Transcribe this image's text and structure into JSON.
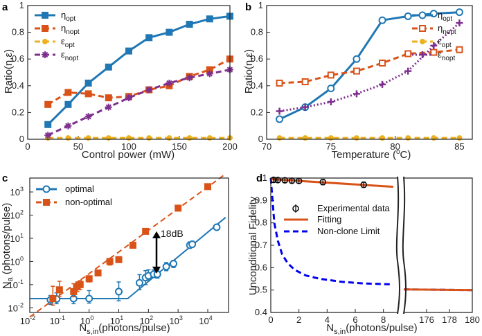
{
  "colors": {
    "blue": "#1f77b4",
    "orange": "#d95319",
    "yellow": "#edb120",
    "purple": "#7e2f8e",
    "darkblue": "#0000ee",
    "black": "#000000"
  },
  "chart_data": [
    {
      "panel": "a",
      "type": "line",
      "xlabel": "Control power (mW)",
      "ylabel": "Ratio(η,ε)",
      "xlim": [
        0,
        200
      ],
      "ylim": [
        0,
        1
      ],
      "xticks": [
        0,
        50,
        100,
        150,
        200
      ],
      "yticks": [
        0,
        0.2,
        0.4,
        0.6,
        0.8,
        1
      ],
      "yticklabels": [
        "0",
        "0.2",
        "0.4",
        "0.6",
        "0.8",
        "1"
      ],
      "legend_position": "top-left",
      "series": [
        {
          "name": "η",
          "sub": "opt",
          "color": "#1f77b4",
          "marker": "square",
          "style": "solid",
          "x": [
            20,
            40,
            60,
            80,
            100,
            120,
            140,
            160,
            180,
            200
          ],
          "y": [
            0.11,
            0.26,
            0.42,
            0.54,
            0.66,
            0.76,
            0.8,
            0.86,
            0.9,
            0.92
          ]
        },
        {
          "name": "η",
          "sub": "nopt",
          "color": "#d95319",
          "marker": "square",
          "style": "dashed",
          "x": [
            20,
            40,
            60,
            80,
            100,
            120,
            140,
            160,
            180,
            200
          ],
          "y": [
            0.26,
            0.35,
            0.34,
            0.31,
            0.32,
            0.37,
            0.4,
            0.47,
            0.52,
            0.6
          ]
        },
        {
          "name": "ε",
          "sub": "opt",
          "color": "#edb120",
          "marker": "circle",
          "style": "dashed",
          "x": [
            20,
            40,
            60,
            80,
            100,
            120,
            140,
            160,
            180,
            200
          ],
          "y": [
            0.01,
            0.01,
            0.01,
            0.01,
            0.01,
            0.01,
            0.01,
            0.01,
            0.01,
            0.01
          ]
        },
        {
          "name": "ε",
          "sub": "nopt",
          "color": "#7e2f8e",
          "marker": "star",
          "style": "dashed",
          "x": [
            20,
            40,
            60,
            80,
            100,
            120,
            140,
            160,
            180,
            200
          ],
          "y": [
            0.03,
            0.1,
            0.17,
            0.24,
            0.31,
            0.37,
            0.42,
            0.46,
            0.49,
            0.52
          ]
        }
      ]
    },
    {
      "panel": "b",
      "type": "line",
      "xlabel": "Temperature (",
      "xlabel_unit": "C)",
      "degree": "o",
      "ylabel": "Ratio(η,ε)",
      "xlim": [
        70,
        86
      ],
      "ylim": [
        0,
        1
      ],
      "xticks": [
        70,
        75,
        80,
        85
      ],
      "yticks": [
        0,
        0.2,
        0.4,
        0.6,
        0.8,
        1
      ],
      "yticklabels": [
        "0",
        "0.2",
        "0.4",
        "0.6",
        "0.8",
        "1"
      ],
      "legend_position": "top-right",
      "series": [
        {
          "name": "η",
          "sub": "opt",
          "color": "#1f77b4",
          "marker": "circle-open",
          "style": "solid",
          "x": [
            71,
            73,
            75,
            77,
            79,
            81,
            83,
            85
          ],
          "y": [
            0.15,
            0.24,
            0.38,
            0.6,
            0.89,
            0.92,
            0.94,
            0.95
          ]
        },
        {
          "name": "η",
          "sub": "nopt",
          "color": "#d95319",
          "marker": "square-open",
          "style": "dashed",
          "x": [
            71,
            73,
            75,
            77,
            79,
            81,
            83,
            85
          ],
          "y": [
            0.42,
            0.43,
            0.48,
            0.51,
            0.57,
            0.64,
            0.65,
            0.67
          ]
        },
        {
          "name": "ε",
          "sub": "opt",
          "color": "#edb120",
          "marker": "circle",
          "style": "dashed",
          "x": [
            71,
            73,
            75,
            77,
            79,
            81,
            83,
            85
          ],
          "y": [
            0.01,
            0.01,
            0.01,
            0.01,
            0.01,
            0.01,
            0.01,
            0.01
          ]
        },
        {
          "name": "ε",
          "sub": "nopt",
          "color": "#7e2f8e",
          "marker": "plus",
          "style": "dotted",
          "x": [
            71,
            73,
            75,
            77,
            79,
            81,
            83,
            85
          ],
          "y": [
            0.21,
            0.24,
            0.28,
            0.34,
            0.41,
            0.51,
            0.7,
            0.87
          ]
        }
      ]
    },
    {
      "panel": "c",
      "type": "scatter",
      "scale": "log-log",
      "xlabel": "N",
      "xlabel_sub": "s,in",
      "xlabel_rest": "(photons/pulse)",
      "ylabel": "N",
      "ylabel_sub": "a",
      "ylabel_rest": " (photons/pulse)",
      "xlim_exp": [
        -2,
        4.7
      ],
      "ylim_exp": [
        -2.2,
        3.6
      ],
      "xtick_exps": [
        -2,
        -1,
        0,
        1,
        2,
        3,
        4
      ],
      "ytick_exps": [
        -2,
        -1,
        0,
        1,
        2,
        3
      ],
      "legend_position": "top-left",
      "annotation": "18dB",
      "series": [
        {
          "name": "optimal",
          "color": "#1f77b4",
          "marker": "circle-open",
          "style": "solid",
          "x": [
            0.05,
            0.08,
            0.3,
            1,
            10,
            50,
            80,
            100,
            150,
            200,
            400,
            700,
            2500,
            3000,
            20000
          ],
          "y": [
            0.022,
            0.024,
            0.025,
            0.025,
            0.05,
            0.12,
            0.2,
            0.24,
            0.28,
            0.28,
            0.6,
            0.8,
            5,
            5.5,
            30
          ],
          "err_low": [
            0.008,
            0.009,
            0.01,
            0.009,
            0.03,
            0.06,
            0.1,
            0.08,
            0.08,
            0.09,
            0.2,
            0.25,
            1,
            1,
            6
          ],
          "err_high": [
            0.012,
            0.02,
            0.03,
            0.03,
            0.08,
            0.15,
            0.2,
            0.2,
            0.15,
            0.15,
            0.3,
            0.3,
            2,
            2,
            10
          ],
          "fit_x": [
            0.01,
            20,
            40000
          ],
          "fit_y": [
            0.025,
            0.025,
            80
          ]
        },
        {
          "name": "non-optimal",
          "color": "#d95319",
          "marker": "square",
          "style": "dashed",
          "x": [
            0.06,
            0.1,
            0.3,
            0.4,
            0.5,
            1,
            2,
            5,
            10,
            30,
            80,
            1000,
            10000
          ],
          "y": [
            0.025,
            0.06,
            0.05,
            0.08,
            0.1,
            0.18,
            0.32,
            1.0,
            1.2,
            5,
            20,
            200,
            1700
          ],
          "err_low": [
            0.012,
            0.03,
            0.02,
            0.03,
            0.04,
            0.05,
            0.08,
            0.3,
            0.2,
            1,
            3,
            30,
            200
          ],
          "err_high": [
            0.06,
            0.08,
            0.06,
            0.05,
            0.05,
            0.06,
            0.1,
            0.3,
            0.3,
            1,
            3,
            30,
            200
          ],
          "fit_x": [
            0.01,
            40000
          ],
          "fit_y": [
            0.004,
            6000
          ]
        }
      ]
    },
    {
      "panel": "d",
      "type": "line",
      "xlabel": "N",
      "xlabel_sub": "s,in",
      "xlabel_rest": "(photons/pulse)",
      "ylabel": "Unconditional Fidelity",
      "ylim": [
        0.4,
        1
      ],
      "yticks": [
        0.4,
        0.5,
        0.6,
        0.7,
        0.8,
        0.9,
        1
      ],
      "yticklabels": [
        "0.4",
        "0.5",
        "0.6",
        "0.7",
        "0.8",
        "0.9",
        "1"
      ],
      "left_xlim": [
        0,
        9
      ],
      "left_xticks": [
        0,
        2,
        4,
        6,
        8
      ],
      "right_xlim": [
        174,
        180
      ],
      "right_xticks": [
        176,
        178,
        180
      ],
      "legend_position": "center-right",
      "series": [
        {
          "name": "Experimental data",
          "color": "#000000",
          "marker": "circle-open",
          "style": "none",
          "x": [
            0.2,
            0.5,
            1.0,
            1.5,
            2.0,
            3.7,
            6.6
          ],
          "y": [
            0.992,
            0.991,
            0.99,
            0.988,
            0.987,
            0.982,
            0.97
          ],
          "err": [
            0.01,
            0.01,
            0.01,
            0.01,
            0.01,
            0.012,
            0.012
          ]
        },
        {
          "name": "Fitting",
          "color": "#d95319",
          "marker": "none",
          "style": "solid",
          "x": [
            0,
            8.7
          ],
          "y": [
            0.995,
            0.961
          ],
          "x_right": [
            174,
            180
          ],
          "y_right": [
            0.503,
            0.5
          ]
        },
        {
          "name": "Non-clone Limit",
          "color": "#0000ee",
          "marker": "none",
          "style": "dashed",
          "x": [
            0,
            0.25,
            0.5,
            0.8,
            1.2,
            1.7,
            2.5,
            3.5,
            5,
            6.5,
            8.7
          ],
          "y": [
            1.0,
            0.8,
            0.72,
            0.66,
            0.62,
            0.59,
            0.565,
            0.55,
            0.537,
            0.53,
            0.525
          ],
          "x_right": [
            174,
            180
          ],
          "y_right": [
            0.503,
            0.5
          ]
        }
      ]
    }
  ]
}
